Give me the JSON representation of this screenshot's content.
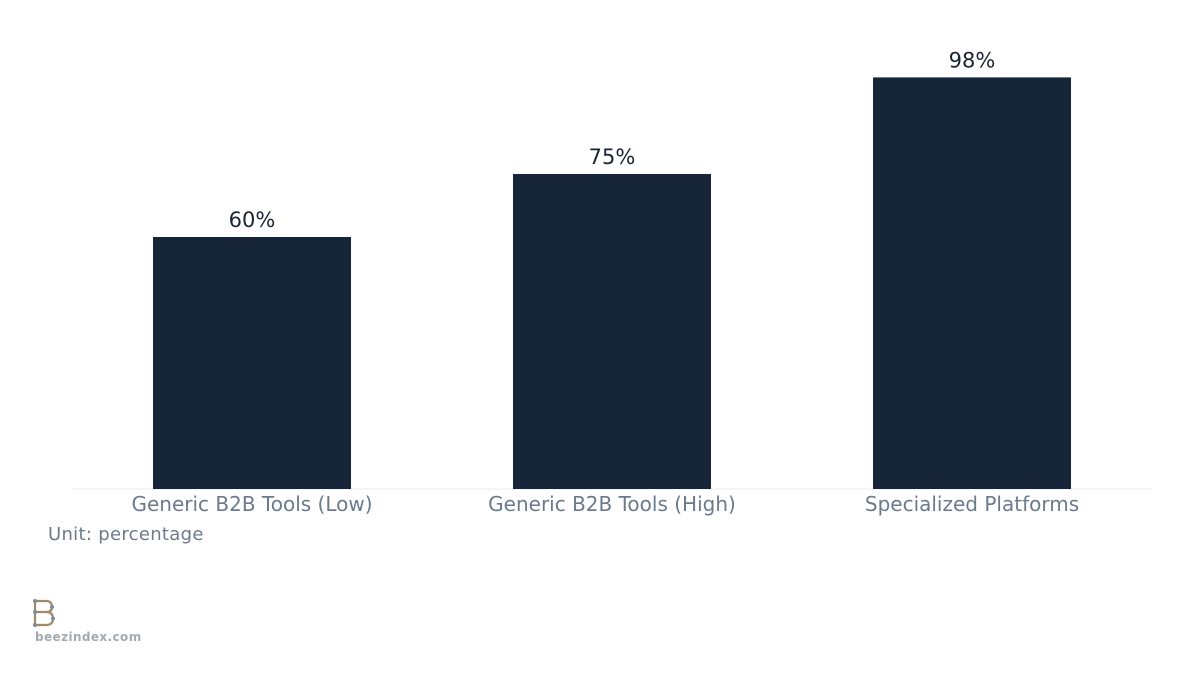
{
  "chart_data": {
    "type": "bar",
    "categories": [
      "Generic B2B Tools (Low)",
      "Generic B2B Tools (High)",
      "Specialized Platforms"
    ],
    "values": [
      60,
      75,
      98
    ],
    "value_labels": [
      "60%",
      "75%",
      "98%"
    ],
    "title": "",
    "xlabel": "",
    "ylabel": "",
    "ylim": [
      0,
      100
    ],
    "grid": false,
    "legend": "none",
    "bar_color": "#172538"
  },
  "unit_label": "Unit: percentage",
  "brand": {
    "name": "beezindex.com",
    "logo_icon": "beezindex-b-logo-icon"
  }
}
